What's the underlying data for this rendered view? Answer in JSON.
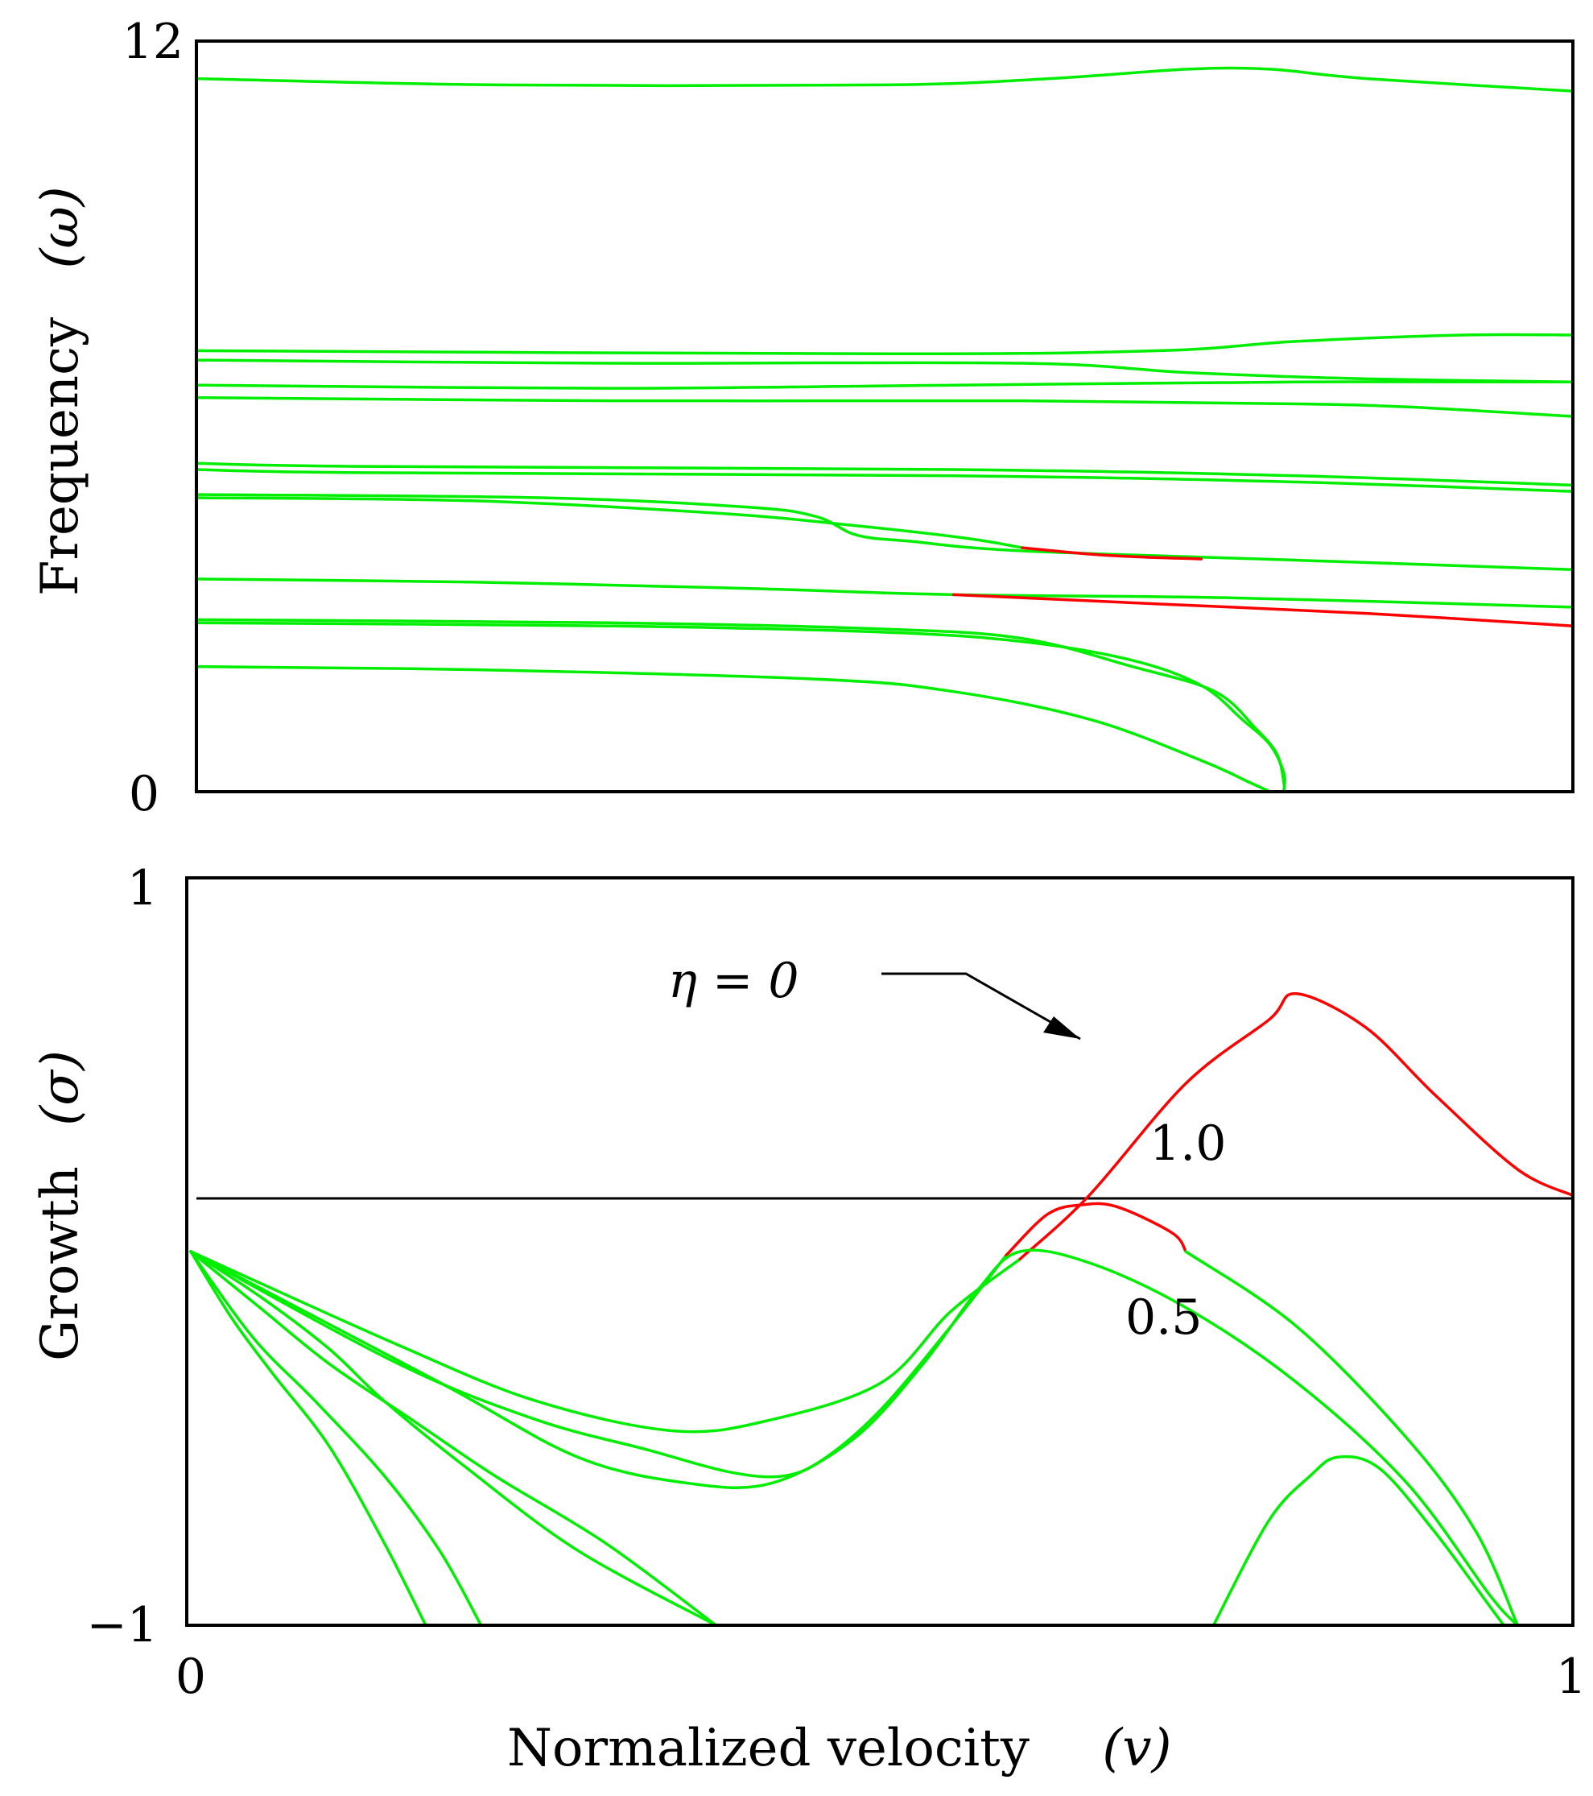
{
  "colors": {
    "stable": "#00ee00",
    "unstable": "#ff0000",
    "axis": "#000000"
  },
  "chart_data": [
    {
      "type": "line",
      "panel": "top",
      "ylabel": "Frequency",
      "ylabel_symbol": "(ω)",
      "xlim": [
        0,
        1
      ],
      "ylim": [
        0,
        12
      ],
      "ytick_labels": [
        "0",
        "12"
      ],
      "series": [
        {
          "name": "mode-1",
          "color": "stable",
          "points": [
            [
              0,
              11.4
            ],
            [
              0.22,
              11.3
            ],
            [
              0.5,
              11.3
            ],
            [
              0.62,
              11.4
            ],
            [
              0.72,
              11.55
            ],
            [
              0.78,
              11.55
            ],
            [
              0.85,
              11.4
            ],
            [
              1,
              11.2
            ]
          ]
        },
        {
          "name": "mode-2",
          "color": "stable",
          "points": [
            [
              0,
              7.05
            ],
            [
              0.5,
              7.0
            ],
            [
              0.7,
              7.05
            ],
            [
              0.8,
              7.2
            ],
            [
              0.92,
              7.3
            ],
            [
              1,
              7.3
            ]
          ]
        },
        {
          "name": "mode-3",
          "color": "stable",
          "points": [
            [
              0,
              6.9
            ],
            [
              0.3,
              6.85
            ],
            [
              0.6,
              6.85
            ],
            [
              0.72,
              6.7
            ],
            [
              0.85,
              6.6
            ],
            [
              1,
              6.55
            ]
          ]
        },
        {
          "name": "mode-4",
          "color": "stable",
          "points": [
            [
              0,
              6.5
            ],
            [
              0.3,
              6.45
            ],
            [
              0.55,
              6.5
            ],
            [
              0.8,
              6.55
            ],
            [
              1,
              6.55
            ]
          ]
        },
        {
          "name": "mode-5",
          "color": "stable",
          "points": [
            [
              0,
              6.3
            ],
            [
              0.3,
              6.25
            ],
            [
              0.6,
              6.25
            ],
            [
              0.8,
              6.2
            ],
            [
              0.88,
              6.15
            ],
            [
              1,
              6.0
            ]
          ]
        },
        {
          "name": "mode-6",
          "color": "stable",
          "points": [
            [
              0,
              5.25
            ],
            [
              0.12,
              5.2
            ],
            [
              0.55,
              5.15
            ],
            [
              0.8,
              5.05
            ],
            [
              1,
              4.9
            ]
          ]
        },
        {
          "name": "mode-7",
          "color": "stable",
          "points": [
            [
              0,
              5.15
            ],
            [
              0.12,
              5.1
            ],
            [
              0.55,
              5.05
            ],
            [
              0.8,
              4.95
            ],
            [
              1,
              4.8
            ]
          ]
        },
        {
          "name": "mode-8",
          "color": "stable",
          "points": [
            [
              0,
              4.75
            ],
            [
              0.25,
              4.7
            ],
            [
              0.4,
              4.55
            ],
            [
              0.45,
              4.4
            ],
            [
              0.48,
              4.1
            ],
            [
              0.52,
              4.0
            ],
            [
              0.6,
              3.85
            ],
            [
              0.8,
              3.7
            ],
            [
              1,
              3.55
            ]
          ]
        },
        {
          "name": "mode-9",
          "color": "stable",
          "points": [
            [
              0,
              4.7
            ],
            [
              0.2,
              4.65
            ],
            [
              0.38,
              4.45
            ],
            [
              0.48,
              4.25
            ],
            [
              0.56,
              4.05
            ],
            [
              0.6,
              3.9
            ]
          ]
        },
        {
          "name": "mode-9-unstable",
          "color": "unstable",
          "points": [
            [
              0.6,
              3.9
            ],
            [
              0.66,
              3.78
            ],
            [
              0.73,
              3.72
            ]
          ]
        },
        {
          "name": "mode-10",
          "color": "stable",
          "points": [
            [
              0,
              3.4
            ],
            [
              0.2,
              3.35
            ],
            [
              0.4,
              3.25
            ],
            [
              0.55,
              3.15
            ],
            [
              0.75,
              3.1
            ],
            [
              1,
              2.95
            ]
          ]
        },
        {
          "name": "mode-10-unstable",
          "color": "unstable",
          "points": [
            [
              0.55,
              3.15
            ],
            [
              0.7,
              3.0
            ],
            [
              0.85,
              2.85
            ],
            [
              1,
              2.65
            ]
          ]
        },
        {
          "name": "mode-11",
          "color": "stable",
          "points": [
            [
              0,
              2.7
            ],
            [
              0.3,
              2.65
            ],
            [
              0.5,
              2.55
            ],
            [
              0.6,
              2.4
            ],
            [
              0.68,
              2.1
            ],
            [
              0.73,
              1.7
            ],
            [
              0.76,
              1.15
            ],
            [
              0.78,
              0.75
            ],
            [
              0.79,
              0.3
            ],
            [
              0.79,
              0.0
            ]
          ]
        },
        {
          "name": "mode-12",
          "color": "stable",
          "points": [
            [
              0,
              2.75
            ],
            [
              0.3,
              2.7
            ],
            [
              0.5,
              2.6
            ],
            [
              0.6,
              2.45
            ],
            [
              0.68,
              2.0
            ],
            [
              0.74,
              1.6
            ],
            [
              0.77,
              1.0
            ],
            [
              0.785,
              0.6
            ],
            [
              0.79,
              0.15
            ],
            [
              0.79,
              0.0
            ]
          ]
        },
        {
          "name": "mode-13",
          "color": "stable",
          "points": [
            [
              0,
              2.0
            ],
            [
              0.2,
              1.95
            ],
            [
              0.45,
              1.8
            ],
            [
              0.55,
              1.6
            ],
            [
              0.65,
              1.15
            ],
            [
              0.73,
              0.5
            ],
            [
              0.765,
              0.15
            ],
            [
              0.78,
              0.0
            ]
          ]
        }
      ]
    },
    {
      "type": "line",
      "panel": "bottom",
      "ylabel": "Growth",
      "ylabel_symbol": "(σ)",
      "xlabel": "Normalized velocity",
      "xlabel_symbol": "(v)",
      "xlim": [
        0,
        1
      ],
      "ylim": [
        -1,
        1
      ],
      "ytick_labels": [
        "−1",
        "1"
      ],
      "xtick_labels": [
        "0",
        "1"
      ],
      "zero_line": true,
      "annotations": [
        {
          "text": "η = 0",
          "arrow_to": [
            0.65,
            0.43
          ]
        },
        {
          "text": "1.0",
          "near": [
            0.73,
            0.14
          ]
        },
        {
          "text": "0.5",
          "near": [
            0.72,
            -0.33
          ]
        }
      ],
      "series": [
        {
          "name": "eta-0-stable",
          "color": "stable",
          "points": [
            [
              0,
              0
            ],
            [
              0.15,
              -0.25
            ],
            [
              0.25,
              -0.4
            ],
            [
              0.35,
              -0.48
            ],
            [
              0.42,
              -0.45
            ],
            [
              0.5,
              -0.35
            ],
            [
              0.55,
              -0.16
            ],
            [
              0.6,
              -0.02
            ]
          ]
        },
        {
          "name": "eta-0-unstable",
          "color": "unstable",
          "points": [
            [
              0.6,
              -0.02
            ],
            [
              0.65,
              0.15
            ],
            [
              0.72,
              0.45
            ],
            [
              0.78,
              0.62
            ],
            [
              0.8,
              0.69
            ],
            [
              0.85,
              0.6
            ],
            [
              0.9,
              0.42
            ],
            [
              0.96,
              0.22
            ],
            [
              1,
              0.15
            ]
          ]
        },
        {
          "name": "eta-1.0-stable",
          "color": "stable",
          "points": [
            [
              0,
              0
            ],
            [
              0.15,
              -0.3
            ],
            [
              0.25,
              -0.45
            ],
            [
              0.33,
              -0.53
            ],
            [
              0.39,
              -0.59
            ],
            [
              0.43,
              -0.6
            ],
            [
              0.46,
              -0.55
            ],
            [
              0.5,
              -0.42
            ],
            [
              0.55,
              -0.2
            ],
            [
              0.59,
              -0.01
            ]
          ]
        },
        {
          "name": "eta-1.0-unstable",
          "color": "unstable",
          "points": [
            [
              0.59,
              -0.01
            ],
            [
              0.62,
              0.1
            ],
            [
              0.645,
              0.125
            ],
            [
              0.67,
              0.12
            ],
            [
              0.71,
              0.05
            ],
            [
              0.72,
              0.0
            ]
          ]
        },
        {
          "name": "eta-1.0-tail",
          "color": "stable",
          "points": [
            [
              0.72,
              0.0
            ],
            [
              0.8,
              -0.2
            ],
            [
              0.88,
              -0.5
            ],
            [
              0.93,
              -0.75
            ],
            [
              0.96,
              -1.0
            ]
          ]
        },
        {
          "name": "eta-0.5",
          "color": "stable",
          "points": [
            [
              0,
              0
            ],
            [
              0.18,
              -0.35
            ],
            [
              0.28,
              -0.55
            ],
            [
              0.36,
              -0.62
            ],
            [
              0.42,
              -0.62
            ],
            [
              0.48,
              -0.5
            ],
            [
              0.53,
              -0.3
            ],
            [
              0.57,
              -0.1
            ],
            [
              0.6,
              0.0
            ],
            [
              0.65,
              -0.03
            ],
            [
              0.72,
              -0.15
            ],
            [
              0.8,
              -0.35
            ],
            [
              0.88,
              -0.62
            ],
            [
              0.94,
              -0.92
            ],
            [
              0.96,
              -1.0
            ]
          ]
        },
        {
          "name": "mode-bump",
          "color": "stable",
          "points": [
            [
              0.74,
              -1.0
            ],
            [
              0.78,
              -0.72
            ],
            [
              0.81,
              -0.6
            ],
            [
              0.83,
              -0.55
            ],
            [
              0.86,
              -0.58
            ],
            [
              0.9,
              -0.75
            ],
            [
              0.94,
              -0.95
            ],
            [
              0.95,
              -1.0
            ]
          ]
        },
        {
          "name": "mode-drop-1",
          "color": "stable",
          "points": [
            [
              0,
              0
            ],
            [
              0.05,
              -0.12
            ],
            [
              0.1,
              -0.26
            ],
            [
              0.14,
              -0.4
            ],
            [
              0.2,
              -0.58
            ],
            [
              0.28,
              -0.8
            ],
            [
              0.38,
              -1.0
            ]
          ]
        },
        {
          "name": "mode-drop-2",
          "color": "stable",
          "points": [
            [
              0,
              0
            ],
            [
              0.05,
              -0.15
            ],
            [
              0.1,
              -0.3
            ],
            [
              0.16,
              -0.45
            ],
            [
              0.22,
              -0.6
            ],
            [
              0.3,
              -0.78
            ],
            [
              0.38,
              -1.0
            ]
          ]
        },
        {
          "name": "mode-drop-3",
          "color": "stable",
          "points": [
            [
              0,
              0
            ],
            [
              0.045,
              -0.23
            ],
            [
              0.09,
              -0.4
            ],
            [
              0.14,
              -0.6
            ],
            [
              0.18,
              -0.8
            ],
            [
              0.21,
              -1.0
            ]
          ]
        },
        {
          "name": "mode-drop-4",
          "color": "stable",
          "points": [
            [
              0,
              0
            ],
            [
              0.03,
              -0.18
            ],
            [
              0.06,
              -0.33
            ],
            [
              0.1,
              -0.52
            ],
            [
              0.14,
              -0.78
            ],
            [
              0.17,
              -1.0
            ]
          ]
        }
      ]
    }
  ]
}
